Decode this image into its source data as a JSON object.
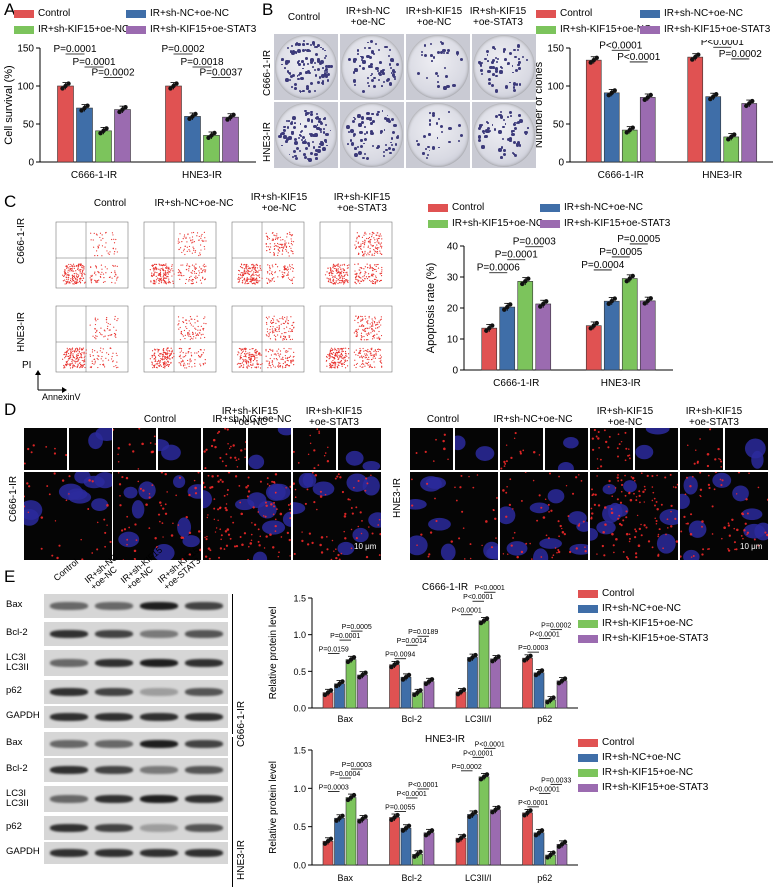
{
  "panels": {
    "A": "A",
    "B": "B",
    "C": "C",
    "D": "D",
    "E": "E"
  },
  "groups": [
    "Control",
    "IR+sh-NC+oe-NC",
    "IR+sh-KIF15+oe-NC",
    "IR+sh-KIF15+oe-STAT3"
  ],
  "colors": [
    "#e05252",
    "#3f6ea8",
    "#7cc45c",
    "#9b6bb0"
  ],
  "panelB": {
    "col_headers": [
      "Control",
      "IR+sh-NC\n+oe-NC",
      "IR+sh-KIF15\n+oe-NC",
      "IR+sh-KIF15\n+oe-STAT3"
    ],
    "row_labels": [
      "C666-1-IR",
      "HNE3-IR"
    ]
  },
  "panelC": {
    "col_headers": [
      "Control",
      "IR+sh-NC+oe-NC",
      "IR+sh-KIF15\n+oe-NC",
      "IR+sh-KIF15\n+oe-STAT3"
    ],
    "row_labels": [
      "C666-1-IR",
      "HNE3-IR"
    ],
    "axis_pi": "PI",
    "axis_annexin": "AnnexinV"
  },
  "panelD": {
    "left_headers": [
      "Control",
      "IR+sh-NC+oe-NC",
      "IR+sh-KIF15\n+oe-NC",
      "IR+sh-KIF15\n+oe-STAT3"
    ],
    "right_headers": [
      "Control",
      "IR+sh-NC+oe-NC",
      "IR+sh-KIF15\n+oe-NC",
      "IR+sh-KIF15\n+oe-STAT3"
    ],
    "left_row": "C666-1-IR",
    "right_row": "HNE3-IR",
    "scale": "10 μm"
  },
  "panelE_blot": {
    "lane_headers": [
      "Control",
      "IR+sh-NC\n+oe-NC",
      "IR+sh-KIF15\n+oe-NC",
      "IR+sh-KIF15\n+oe-STAT3"
    ],
    "rows_top": [
      "Bax",
      "Bcl-2",
      "LC3I\nLC3II",
      "p62",
      "GAPDH"
    ],
    "rows_bottom": [
      "Bax",
      "Bcl-2",
      "LC3I\nLC3II",
      "p62",
      "GAPDH"
    ],
    "side_top": "C666-1-IR",
    "side_bottom": "HNE3-IR"
  },
  "chart_data": [
    {
      "id": "A",
      "type": "bar",
      "categories": [
        "C666-1-IR",
        "HNE3-IR"
      ],
      "ylabel": "Cell survival (%)",
      "ylim": [
        0,
        150
      ],
      "yticks": [
        0,
        50,
        100,
        150
      ],
      "series": [
        {
          "name": "Control",
          "values": [
            100,
            100
          ]
        },
        {
          "name": "IR+sh-NC+oe-NC",
          "values": [
            71,
            60
          ]
        },
        {
          "name": "IR+sh-KIF15+oe-NC",
          "values": [
            41,
            35
          ]
        },
        {
          "name": "IR+sh-KIF15+oe-STAT3",
          "values": [
            69,
            59
          ]
        }
      ],
      "pvalues": [
        {
          "cat": 0,
          "a": 0,
          "b": 1,
          "text": "P=0.0001"
        },
        {
          "cat": 0,
          "a": 1,
          "b": 2,
          "text": "P=0.0001"
        },
        {
          "cat": 0,
          "a": 2,
          "b": 3,
          "text": "P=0.0002"
        },
        {
          "cat": 1,
          "a": 0,
          "b": 1,
          "text": "P=0.0002"
        },
        {
          "cat": 1,
          "a": 1,
          "b": 2,
          "text": "P=0.0018"
        },
        {
          "cat": 1,
          "a": 2,
          "b": 3,
          "text": "P=0.0037"
        }
      ]
    },
    {
      "id": "B",
      "type": "bar",
      "categories": [
        "C666-1-IR",
        "HNE3-IR"
      ],
      "ylabel": "Number of clones",
      "ylim": [
        0,
        150
      ],
      "yticks": [
        0,
        50,
        100,
        150
      ],
      "series": [
        {
          "name": "Control",
          "values": [
            134,
            138
          ]
        },
        {
          "name": "IR+sh-NC+oe-NC",
          "values": [
            91,
            86
          ]
        },
        {
          "name": "IR+sh-KIF15+oe-NC",
          "values": [
            42,
            33
          ]
        },
        {
          "name": "IR+sh-KIF15+oe-STAT3",
          "values": [
            85,
            77
          ]
        }
      ],
      "pvalues": [
        {
          "cat": 0,
          "a": 0,
          "b": 1,
          "text": "P<0.0001"
        },
        {
          "cat": 0,
          "a": 1,
          "b": 2,
          "text": "P<0.0001"
        },
        {
          "cat": 0,
          "a": 2,
          "b": 3,
          "text": "P<0.0001"
        },
        {
          "cat": 1,
          "a": 0,
          "b": 1,
          "text": "P<0.0001"
        },
        {
          "cat": 1,
          "a": 1,
          "b": 2,
          "text": "P<0.0001"
        },
        {
          "cat": 1,
          "a": 2,
          "b": 3,
          "text": "P=0.0002"
        }
      ]
    },
    {
      "id": "C",
      "type": "bar",
      "categories": [
        "C666-1-IR",
        "HNE3-IR"
      ],
      "ylabel": "Apoptosis rate (%)",
      "ylim": [
        0,
        40
      ],
      "yticks": [
        0,
        10,
        20,
        30,
        40
      ],
      "series": [
        {
          "name": "Control",
          "values": [
            13.5,
            14.3
          ]
        },
        {
          "name": "IR+sh-NC+oe-NC",
          "values": [
            20.3,
            22.2
          ]
        },
        {
          "name": "IR+sh-KIF15+oe-NC",
          "values": [
            28.6,
            29.5
          ]
        },
        {
          "name": "IR+sh-KIF15+oe-STAT3",
          "values": [
            21.3,
            22.3
          ]
        }
      ],
      "pvalues": [
        {
          "cat": 0,
          "a": 0,
          "b": 1,
          "text": "P=0.0006"
        },
        {
          "cat": 0,
          "a": 1,
          "b": 2,
          "text": "P=0.0001"
        },
        {
          "cat": 0,
          "a": 2,
          "b": 3,
          "text": "P=0.0003"
        },
        {
          "cat": 1,
          "a": 0,
          "b": 1,
          "text": "P=0.0004"
        },
        {
          "cat": 1,
          "a": 1,
          "b": 2,
          "text": "P=0.0005"
        },
        {
          "cat": 1,
          "a": 2,
          "b": 3,
          "text": "P=0.0005"
        }
      ]
    },
    {
      "id": "E1",
      "type": "bar",
      "title": "C666-1-IR",
      "categories": [
        "Bax",
        "Bcl-2",
        "LC3II/I",
        "p62"
      ],
      "ylabel": "Relative protein level",
      "ylim": [
        0,
        1.5
      ],
      "yticks": [
        0.0,
        0.5,
        1.0,
        1.5
      ],
      "series": [
        {
          "name": "Control",
          "values": [
            0.21,
            0.59,
            0.22,
            0.68
          ]
        },
        {
          "name": "IR+sh-NC+oe-NC",
          "values": [
            0.33,
            0.42,
            0.69,
            0.48
          ]
        },
        {
          "name": "IR+sh-KIF15+oe-NC",
          "values": [
            0.66,
            0.21,
            1.19,
            0.11
          ]
        },
        {
          "name": "IR+sh-KIF15+oe-STAT3",
          "values": [
            0.45,
            0.36,
            0.67,
            0.37
          ]
        }
      ],
      "pvalues": [
        {
          "cat": 0,
          "a": 0,
          "b": 1,
          "text": "P=0.0159"
        },
        {
          "cat": 0,
          "a": 1,
          "b": 2,
          "text": "P=0.0001"
        },
        {
          "cat": 0,
          "a": 2,
          "b": 3,
          "text": "P=0.0005"
        },
        {
          "cat": 1,
          "a": 0,
          "b": 1,
          "text": "P=0.0094"
        },
        {
          "cat": 1,
          "a": 1,
          "b": 2,
          "text": "P=0.0014"
        },
        {
          "cat": 1,
          "a": 2,
          "b": 3,
          "text": "P=0.0189"
        },
        {
          "cat": 2,
          "a": 0,
          "b": 1,
          "text": "P<0.0001"
        },
        {
          "cat": 2,
          "a": 1,
          "b": 2,
          "text": "P<0.0001"
        },
        {
          "cat": 2,
          "a": 2,
          "b": 3,
          "text": "P<0.0001"
        },
        {
          "cat": 3,
          "a": 0,
          "b": 1,
          "text": "P=0.0003"
        },
        {
          "cat": 3,
          "a": 1,
          "b": 2,
          "text": "P<0.0001"
        },
        {
          "cat": 3,
          "a": 2,
          "b": 3,
          "text": "P=0.0002"
        }
      ]
    },
    {
      "id": "E2",
      "type": "bar",
      "title": "HNE3-IR",
      "categories": [
        "Bax",
        "Bcl-2",
        "LC3II/I",
        "p62"
      ],
      "ylabel": "Relative protein level",
      "ylim": [
        0,
        1.5
      ],
      "yticks": [
        0.0,
        0.5,
        1.0,
        1.5
      ],
      "series": [
        {
          "name": "Control",
          "values": [
            0.31,
            0.62,
            0.35,
            0.68
          ]
        },
        {
          "name": "IR+sh-NC+oe-NC",
          "values": [
            0.61,
            0.48,
            0.66,
            0.42
          ]
        },
        {
          "name": "IR+sh-KIF15+oe-NC",
          "values": [
            0.88,
            0.14,
            1.15,
            0.13
          ]
        },
        {
          "name": "IR+sh-KIF15+oe-STAT3",
          "values": [
            0.6,
            0.42,
            0.72,
            0.27
          ]
        }
      ],
      "pvalues": [
        {
          "cat": 0,
          "a": 0,
          "b": 1,
          "text": "P=0.0003"
        },
        {
          "cat": 0,
          "a": 1,
          "b": 2,
          "text": "P=0.0004"
        },
        {
          "cat": 0,
          "a": 2,
          "b": 3,
          "text": "P=0.0003"
        },
        {
          "cat": 1,
          "a": 0,
          "b": 1,
          "text": "P=0.0055"
        },
        {
          "cat": 1,
          "a": 1,
          "b": 2,
          "text": "P<0.0001"
        },
        {
          "cat": 1,
          "a": 2,
          "b": 3,
          "text": "P<0.0001"
        },
        {
          "cat": 2,
          "a": 0,
          "b": 1,
          "text": "P=0.0002"
        },
        {
          "cat": 2,
          "a": 1,
          "b": 2,
          "text": "P<0.0001"
        },
        {
          "cat": 2,
          "a": 2,
          "b": 3,
          "text": "P<0.0001"
        },
        {
          "cat": 3,
          "a": 0,
          "b": 1,
          "text": "P<0.0001"
        },
        {
          "cat": 3,
          "a": 1,
          "b": 2,
          "text": "P<0.0001"
        },
        {
          "cat": 3,
          "a": 2,
          "b": 3,
          "text": "P=0.0033"
        }
      ]
    }
  ]
}
